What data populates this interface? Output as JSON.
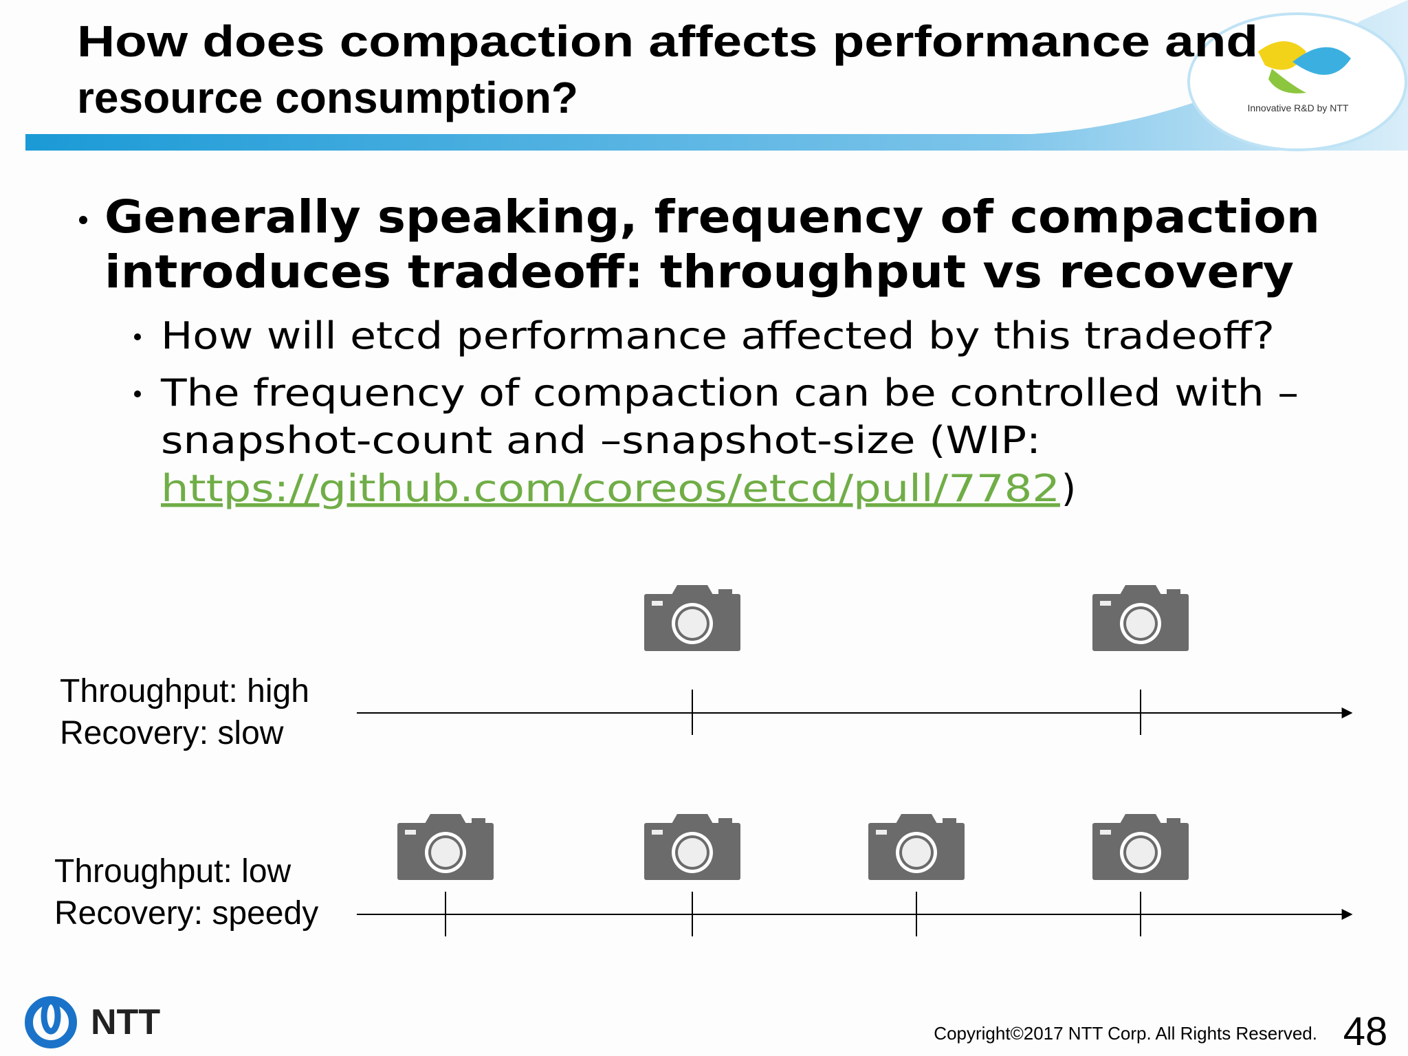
{
  "header": {
    "title_lines": [
      "How does compaction affects performance and",
      "resource consumption?"
    ],
    "logo_caption": "Innovative R&D by NTT"
  },
  "bullets": [
    {
      "lines": [
        "Generally speaking, frequency of compaction",
        "introduces tradeoff: throughput vs recovery"
      ],
      "sub": [
        {
          "lines": [
            "How will etcd performance affected by this tradeoff?"
          ]
        },
        {
          "lines": [
            "The frequency of compaction can be controlled with –",
            "snapshot-count and –snapshot-size (WIP:"
          ],
          "link": "https://github.com/coreos/etcd/pull/7782",
          "after_link": ")"
        }
      ]
    }
  ],
  "diagram": {
    "rows": [
      {
        "labels": [
          "Throughput: high",
          "Recovery: slow"
        ]
      },
      {
        "labels": [
          "Throughput: low",
          "Recovery: speedy"
        ]
      }
    ]
  },
  "footer": {
    "logo_text": "NTT",
    "copyright": "Copyright©2017  NTT Corp. All Rights Reserved.",
    "page_number": "48"
  }
}
